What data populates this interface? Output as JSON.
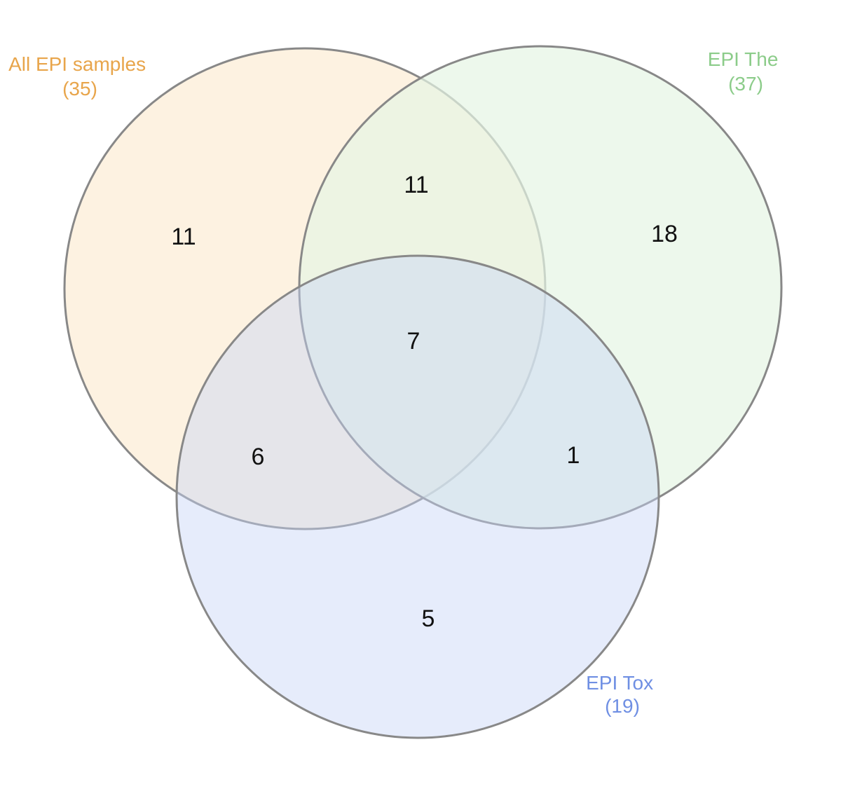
{
  "sets": [
    {
      "id": "all",
      "name": "All EPI samples",
      "total": "(35)",
      "fill": "#fdf0dc",
      "fill_opacity": 0.85,
      "label_color": "#e8a54b"
    },
    {
      "id": "the",
      "name": "EPI The",
      "total": "(37)",
      "fill": "#e6f5e4",
      "fill_opacity": 0.7,
      "label_color": "#8ccc8a"
    },
    {
      "id": "tox",
      "name": "EPI Tox",
      "total": "(19)",
      "fill": "#c7d4f7",
      "fill_opacity": 0.45,
      "label_color": "#6f8fe3"
    }
  ],
  "regions": {
    "all_only": "11",
    "the_only": "18",
    "tox_only": "5",
    "all_the": "11",
    "all_tox": "6",
    "the_tox": "1",
    "all_the_tox": "7"
  }
}
